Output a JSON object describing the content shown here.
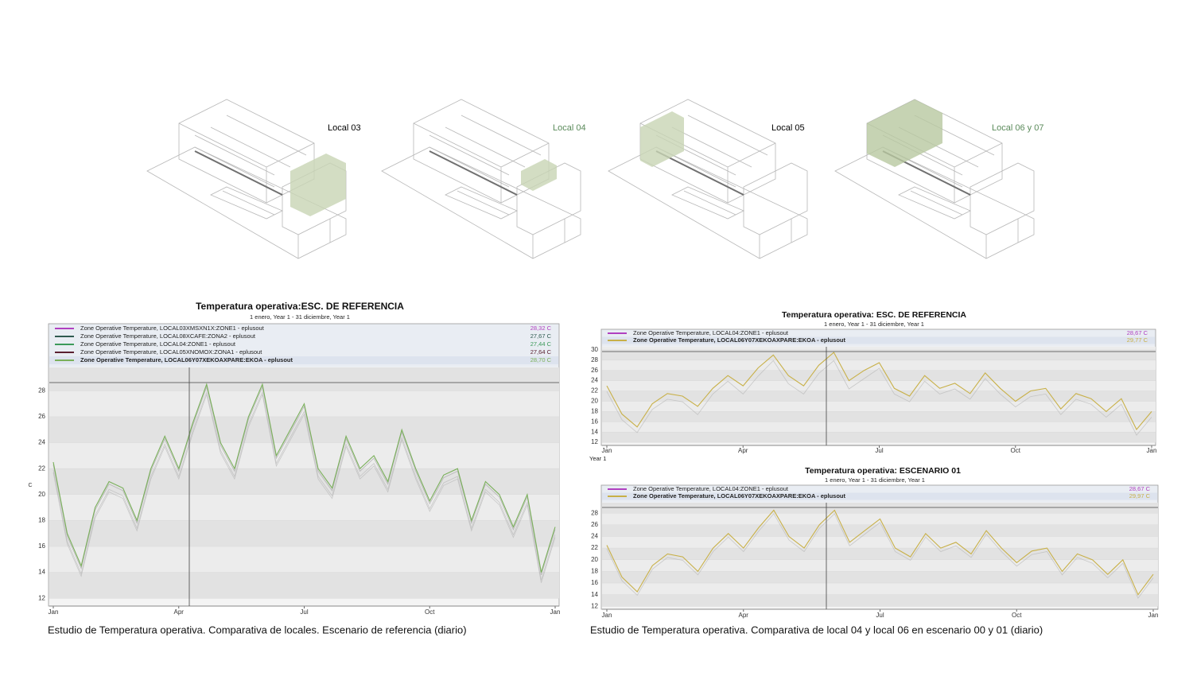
{
  "drawings": [
    {
      "label": "Local 03"
    },
    {
      "label": "Local 04"
    },
    {
      "label": "Local 05"
    },
    {
      "label": "Local 06 y 07"
    }
  ],
  "captions": [
    "Estudio de Temperatura operativa. Comparativa de locales. Escenario de referencia (diario)",
    "Estudio de Temperatura operativa. Comparativa de local 04 y local 06 en escenario 00 y 01 (diario)"
  ],
  "chart_data": [
    {
      "type": "line",
      "title": "Temperatura operativa:ESC. DE REFERENCIA",
      "subtitle": "1 enero, Year 1 - 31 diciembre, Year 1",
      "y_label": "C",
      "categories": [
        "Jan",
        null,
        null,
        null,
        null,
        null,
        null,
        null,
        null,
        "Apr",
        null,
        null,
        null,
        null,
        null,
        null,
        null,
        null,
        "Jul",
        null,
        null,
        null,
        null,
        null,
        null,
        null,
        null,
        "Oct",
        null,
        null,
        null,
        null,
        null,
        null,
        null,
        null,
        "Jan"
      ],
      "ylim": [
        11.4,
        29.8
      ],
      "yticks": [
        12,
        14,
        16,
        18,
        20,
        22,
        24,
        26,
        28
      ],
      "grid": true,
      "series": [
        {
          "name": "Zone Operative Temperature, LOCAL03XMSXN1X:ZONE1 - eplusout",
          "legend_value": "28,32 C",
          "color": "#b040c0",
          "highlight": false,
          "values": [
            22.3,
            16.8,
            14.3,
            18.8,
            20.8,
            20.3,
            17.8,
            21.8,
            24.3,
            21.8,
            25.3,
            28.3,
            23.8,
            21.8,
            25.8,
            28.3,
            22.8,
            24.8,
            26.8,
            21.8,
            20.3,
            24.3,
            21.8,
            22.8,
            20.8,
            24.8,
            21.8,
            19.3,
            21.3,
            21.8,
            17.8,
            20.8,
            19.8,
            17.3,
            19.8,
            13.8,
            17.3
          ]
        },
        {
          "name": "Zone Operative Temperature, LOCAL08XCAFE:ZONA2 - eplusout",
          "legend_value": "27,67 C",
          "color": "#2f5a50",
          "highlight": false,
          "values": [
            21.7,
            16.2,
            13.7,
            18.2,
            20.2,
            19.7,
            17.2,
            21.2,
            23.7,
            21.2,
            24.7,
            27.7,
            23.2,
            21.2,
            25.2,
            27.7,
            22.2,
            24.2,
            26.2,
            21.2,
            19.7,
            23.7,
            21.2,
            22.2,
            20.2,
            24.2,
            21.2,
            18.7,
            20.7,
            21.2,
            17.2,
            20.2,
            19.2,
            16.7,
            19.2,
            13.2,
            16.7
          ]
        },
        {
          "name": "Zone Operative Temperature, LOCAL04:ZONE1 - eplusout",
          "legend_value": "27,44 C",
          "color": "#3c9a5a",
          "highlight": false,
          "values": [
            21.9,
            16.4,
            13.9,
            18.4,
            20.4,
            19.9,
            17.4,
            21.4,
            23.9,
            21.4,
            24.9,
            27.9,
            23.4,
            21.4,
            25.4,
            27.9,
            22.4,
            24.4,
            26.4,
            21.4,
            19.9,
            23.9,
            21.4,
            22.4,
            20.4,
            24.4,
            21.4,
            18.9,
            20.9,
            21.4,
            17.4,
            20.4,
            19.4,
            16.9,
            19.4,
            13.4,
            16.9
          ]
        },
        {
          "name": "Zone Operative Temperature, LOCAL05XNOMOX:ZONA1 - eplusout",
          "legend_value": "27,64 C",
          "color": "#5a2030",
          "highlight": false,
          "values": [
            22.3,
            16.8,
            14.3,
            18.8,
            20.8,
            20.3,
            17.8,
            21.8,
            24.3,
            21.8,
            25.3,
            28.3,
            23.8,
            21.8,
            25.8,
            28.3,
            22.8,
            24.8,
            26.8,
            21.8,
            20.3,
            24.3,
            21.8,
            22.8,
            20.8,
            24.8,
            21.8,
            19.3,
            21.3,
            21.8,
            17.8,
            20.8,
            19.8,
            17.3,
            19.8,
            13.8,
            17.3
          ]
        },
        {
          "name": "Zone Operative Temperature, LOCAL06Y07XEKOAXPARE:EKOA - eplusout",
          "legend_value": "28,70 C",
          "color": "#7ab05a",
          "highlight": true,
          "values": [
            22.5,
            17,
            14.5,
            19,
            21,
            20.5,
            18,
            22,
            24.5,
            22,
            25.5,
            28.5,
            24,
            22,
            26,
            28.5,
            23,
            25,
            27,
            22,
            20.5,
            24.5,
            22,
            23,
            21,
            25,
            22,
            19.5,
            21.5,
            22,
            18,
            21,
            20,
            17.5,
            20,
            14,
            17.5
          ]
        }
      ]
    },
    {
      "type": "line",
      "title": "Temperatura operativa: ESC. DE REFERENCIA",
      "subtitle": "1 enero, Year 1 - 31 diciembre, Year 1",
      "x_caption": "Year 1",
      "categories": [
        "Jan",
        null,
        null,
        null,
        null,
        null,
        null,
        null,
        null,
        "Apr",
        null,
        null,
        null,
        null,
        null,
        null,
        null,
        null,
        "Jul",
        null,
        null,
        null,
        null,
        null,
        null,
        null,
        null,
        "Oct",
        null,
        null,
        null,
        null,
        null,
        null,
        null,
        null,
        "Jan"
      ],
      "ylim": [
        11.4,
        30.6
      ],
      "yticks": [
        12,
        14,
        16,
        18,
        20,
        22,
        24,
        26,
        28,
        30
      ],
      "grid": true,
      "series": [
        {
          "name": "Zone Operative Temperature, LOCAL04:ZONE1 - eplusout",
          "legend_value": "28,67 C",
          "color": "#b040c0",
          "highlight": false,
          "values": [
            21.9,
            16.4,
            13.9,
            18.4,
            20.4,
            19.9,
            17.4,
            21.4,
            23.9,
            21.4,
            24.9,
            27.9,
            23.4,
            21.4,
            25.4,
            27.9,
            22.4,
            24.4,
            26.4,
            21.4,
            19.9,
            23.9,
            21.4,
            22.4,
            20.4,
            24.4,
            21.4,
            18.9,
            20.9,
            21.4,
            17.4,
            20.4,
            19.4,
            16.9,
            19.4,
            13.4,
            16.9
          ]
        },
        {
          "name": "Zone Operative Temperature, LOCAL06Y07XEKOAXPARE:EKOA - eplusout",
          "legend_value": "29,77 C",
          "color": "#c8b048",
          "highlight": true,
          "values": [
            23,
            17.5,
            15,
            19.5,
            21.5,
            21,
            19,
            22.5,
            25,
            23,
            26.5,
            29,
            25,
            23,
            27,
            29.5,
            24,
            26,
            27.5,
            22.5,
            21,
            25,
            22.5,
            23.5,
            21.5,
            25.5,
            22.5,
            20,
            22,
            22.5,
            18.5,
            21.5,
            20.5,
            18,
            20.5,
            14.5,
            18
          ]
        }
      ]
    },
    {
      "type": "line",
      "title": "Temperatura operativa: ESCENARIO 01",
      "subtitle": "1 enero, Year 1 - 31 diciembre, Year 1",
      "categories": [
        "Jan",
        null,
        null,
        null,
        null,
        null,
        null,
        null,
        null,
        "Apr",
        null,
        null,
        null,
        null,
        null,
        null,
        null,
        null,
        "Jul",
        null,
        null,
        null,
        null,
        null,
        null,
        null,
        null,
        "Oct",
        null,
        null,
        null,
        null,
        null,
        null,
        null,
        null,
        "Jan"
      ],
      "ylim": [
        11.5,
        29.8
      ],
      "yticks": [
        12,
        14,
        16,
        18,
        20,
        22,
        24,
        26,
        28
      ],
      "grid": true,
      "series": [
        {
          "name": "Zone Operative Temperature, LOCAL04:ZONE1 - eplusout",
          "legend_value": "28,67 C",
          "color": "#b040c0",
          "highlight": false,
          "values": [
            21.9,
            16.4,
            13.9,
            18.4,
            20.4,
            19.9,
            17.4,
            21.4,
            23.9,
            21.4,
            24.9,
            27.9,
            23.4,
            21.4,
            25.4,
            27.9,
            22.4,
            24.4,
            26.4,
            21.4,
            19.9,
            23.9,
            21.4,
            22.4,
            20.4,
            24.4,
            21.4,
            18.9,
            20.9,
            21.4,
            17.4,
            20.4,
            19.4,
            16.9,
            19.4,
            13.4,
            16.9
          ]
        },
        {
          "name": "Zone Operative Temperature, LOCAL06Y07XEKOAXPARE:EKOA - eplusout",
          "legend_value": "29,97 C",
          "color": "#c8b048",
          "highlight": true,
          "values": [
            22.5,
            17,
            14.5,
            19,
            21,
            20.5,
            18,
            22,
            24.5,
            22,
            25.5,
            28.5,
            24,
            22,
            26,
            28.5,
            23,
            25,
            27,
            22,
            20.5,
            24.5,
            22,
            23,
            21,
            25,
            22,
            19.5,
            21.5,
            22,
            18,
            21,
            20,
            17.5,
            20,
            14,
            17.5
          ]
        }
      ]
    }
  ]
}
